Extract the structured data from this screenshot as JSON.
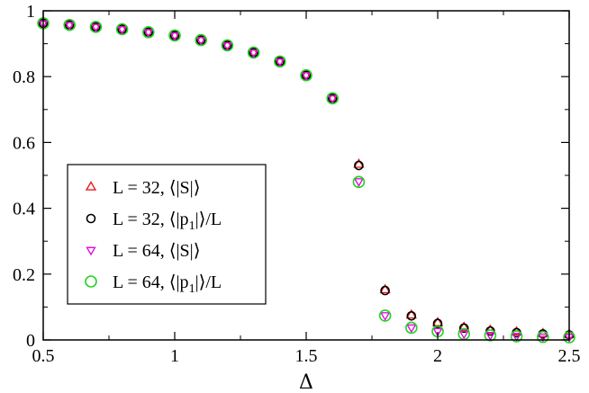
{
  "chart_data": {
    "type": "scatter",
    "title": "",
    "xlabel": "Δ",
    "ylabel": "",
    "xlim": [
      0.5,
      2.5
    ],
    "ylim": [
      0,
      1
    ],
    "grid": false,
    "legend_position": "left",
    "x_ticks": [
      0.5,
      1,
      1.5,
      2,
      2.5
    ],
    "x_tick_labels": [
      "0.5",
      "1",
      "1.5",
      "2",
      "2.5"
    ],
    "y_ticks": [
      0,
      0.2,
      0.4,
      0.6,
      0.8,
      1
    ],
    "y_tick_labels": [
      "0",
      "0.2",
      "0.4",
      "0.6",
      "0.8",
      "1"
    ],
    "series": [
      {
        "name": "L = 32, ⟨|S|⟩",
        "color": "#e0201c",
        "marker": "triangle-up",
        "x": [
          0.5,
          0.6,
          0.7,
          0.8,
          0.9,
          1.0,
          1.1,
          1.2,
          1.3,
          1.4,
          1.5,
          1.6,
          1.7,
          1.8,
          1.9,
          2.0,
          2.1,
          2.2,
          2.3,
          2.4,
          2.5
        ],
        "y": [
          0.962,
          0.957,
          0.951,
          0.944,
          0.935,
          0.925,
          0.911,
          0.895,
          0.873,
          0.846,
          0.804,
          0.734,
          0.533,
          0.152,
          0.075,
          0.052,
          0.038,
          0.029,
          0.024,
          0.019,
          0.016
        ]
      },
      {
        "name": "L = 32, ⟨|p₁|⟩/L",
        "color": "#000000",
        "marker": "circle",
        "x": [
          0.5,
          0.6,
          0.7,
          0.8,
          0.9,
          1.0,
          1.1,
          1.2,
          1.3,
          1.4,
          1.5,
          1.6,
          1.7,
          1.8,
          1.9,
          2.0,
          2.1,
          2.2,
          2.3,
          2.4,
          2.5
        ],
        "y": [
          0.962,
          0.957,
          0.951,
          0.944,
          0.935,
          0.925,
          0.911,
          0.895,
          0.873,
          0.846,
          0.804,
          0.734,
          0.53,
          0.15,
          0.073,
          0.05,
          0.036,
          0.027,
          0.022,
          0.018,
          0.015
        ]
      },
      {
        "name": "L = 64, ⟨|S|⟩",
        "color": "#e010e0",
        "marker": "triangle-down",
        "x": [
          0.5,
          0.6,
          0.7,
          0.8,
          0.9,
          1.0,
          1.1,
          1.2,
          1.3,
          1.4,
          1.5,
          1.6,
          1.7,
          1.8,
          1.9,
          2.0,
          2.1,
          2.2,
          2.3,
          2.4,
          2.5
        ],
        "y": [
          0.962,
          0.957,
          0.951,
          0.944,
          0.935,
          0.925,
          0.911,
          0.895,
          0.873,
          0.846,
          0.804,
          0.734,
          0.482,
          0.075,
          0.038,
          0.027,
          0.019,
          0.015,
          0.012,
          0.01,
          0.009
        ]
      },
      {
        "name": "L = 64, ⟨|p₁|⟩/L",
        "color": "#22d322",
        "marker": "circle",
        "x": [
          0.5,
          0.6,
          0.7,
          0.8,
          0.9,
          1.0,
          1.1,
          1.2,
          1.3,
          1.4,
          1.5,
          1.6,
          1.7,
          1.8,
          1.9,
          2.0,
          2.1,
          2.2,
          2.3,
          2.4,
          2.5
        ],
        "y": [
          0.962,
          0.957,
          0.951,
          0.944,
          0.935,
          0.925,
          0.911,
          0.895,
          0.873,
          0.846,
          0.804,
          0.734,
          0.48,
          0.074,
          0.037,
          0.026,
          0.018,
          0.014,
          0.011,
          0.009,
          0.008
        ]
      }
    ],
    "legend": [
      {
        "prefix": "L = 32, ⟨|S|⟩",
        "sub": "",
        "suffix": ""
      },
      {
        "prefix": "L = 32, ⟨|p",
        "sub": "1",
        "suffix": "|⟩/L"
      },
      {
        "prefix": "L = 64, ⟨|S|⟩",
        "sub": "",
        "suffix": ""
      },
      {
        "prefix": "L = 64, ⟨|p",
        "sub": "1",
        "suffix": "|⟩/L"
      }
    ]
  }
}
